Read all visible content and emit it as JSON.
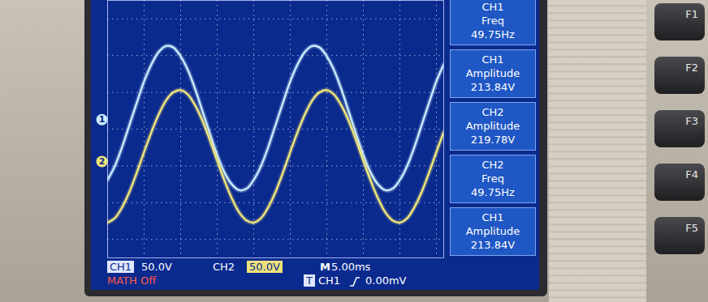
{
  "chart_data": {
    "type": "line",
    "x": [
      0,
      1,
      2,
      3,
      4,
      5,
      6,
      7,
      8,
      9,
      10,
      11,
      12,
      13,
      14,
      15,
      16,
      17,
      18,
      19,
      20,
      21,
      22,
      23,
      24,
      25,
      26,
      27,
      28,
      29,
      30,
      31,
      32,
      33,
      34,
      35,
      36,
      37,
      38,
      39,
      40,
      41,
      42,
      43,
      44,
      45,
      46
    ],
    "series": [
      {
        "color": "#c9ecff",
        "values": [
          -69,
          -50,
          -24,
          6,
          36,
          65,
          88,
          105,
          113,
          111,
          99,
          80,
          54,
          24,
          -6,
          -35,
          -59,
          -75,
          -83,
          -81,
          -69,
          -50,
          -24,
          6,
          36,
          65,
          88,
          105,
          113,
          111,
          99,
          80,
          54,
          24,
          -6,
          -35,
          -59,
          -75,
          -83,
          -81,
          -69,
          -50,
          -24,
          6,
          36,
          65,
          88
        ]
      },
      {
        "color": "#f2e87a",
        "values": [
          -127,
          -121,
          -106,
          -85,
          -59,
          -31,
          -4,
          20,
          39,
          50,
          53,
          47,
          32,
          11,
          -15,
          -43,
          -70,
          -94,
          -113,
          -124,
          -127,
          -121,
          -106,
          -85,
          -59,
          -31,
          -4,
          20,
          39,
          50,
          53,
          47,
          32,
          11,
          -15,
          -43,
          -70,
          -94,
          -113,
          -124,
          -127,
          -121,
          -106,
          -85,
          -59,
          -31,
          -4
        ]
      }
    ],
    "xlim": [
      0,
      46
    ],
    "xticks": [
      0,
      5,
      10,
      15,
      20,
      25,
      30,
      35,
      40,
      45
    ],
    "ylim": [
      -175,
      175
    ],
    "yticks": [
      -150,
      -100,
      -50,
      0,
      50,
      100,
      150
    ],
    "grid": true,
    "tick_labels": false,
    "channel_markers": [
      {
        "label": "1",
        "value": 13,
        "color": "#c9ecff"
      },
      {
        "label": "2",
        "value": -44,
        "color": "#f2e87a"
      }
    ],
    "measurements": [
      [
        "CH1",
        "Freq",
        "49.75Hz"
      ],
      [
        "CH1",
        "Amplitude",
        "213.84V"
      ],
      [
        "CH2",
        "Amplitude",
        "219.78V"
      ],
      [
        "CH2",
        "Freq",
        "49.75Hz"
      ],
      [
        "CH1",
        "Amplitude",
        "213.84V"
      ]
    ],
    "status_bar": {
      "ch1": [
        "CH1",
        "50.0V"
      ],
      "ch2": [
        "CH2",
        "50.0V"
      ],
      "timebase": [
        "M",
        "5.00ms"
      ],
      "trigger": [
        "T",
        "CH1",
        "0.00mV"
      ],
      "math": "MATH Off"
    },
    "buttons": [
      "F1",
      "F2",
      "F3",
      "F4",
      "F5"
    ]
  }
}
